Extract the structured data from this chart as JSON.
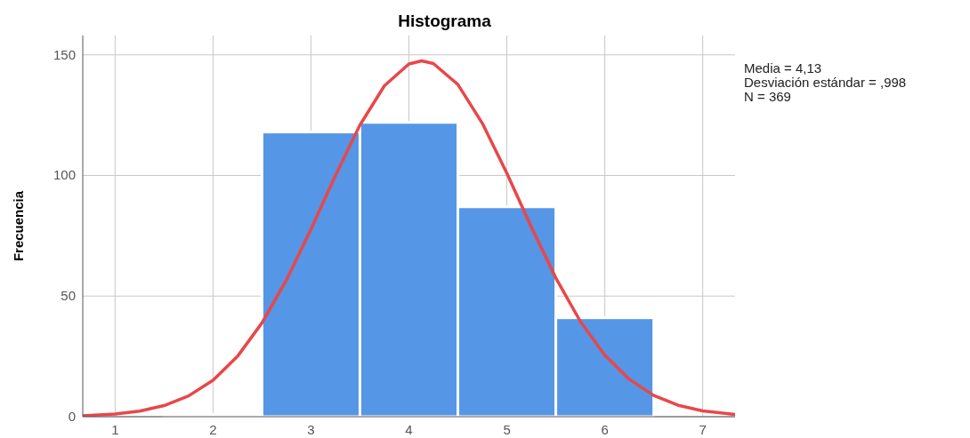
{
  "chart_data": {
    "type": "histogram",
    "title": "Histograma",
    "ylabel": "Frecuencia",
    "bins": [
      1.5,
      2.5,
      3.5,
      4.5,
      5.5,
      6.5
    ],
    "values": [
      1,
      118,
      122,
      87,
      41
    ],
    "color": "#5596e6",
    "series": [
      {
        "type": "line",
        "color": "#e8474a",
        "x": [
          0.67,
          1,
          1.25,
          1.5,
          1.75,
          2,
          2.25,
          2.5,
          2.75,
          3,
          3.25,
          3.5,
          3.75,
          4,
          4.13,
          4.25,
          4.5,
          4.75,
          5,
          5.25,
          5.5,
          5.75,
          6,
          6.25,
          6.5,
          6.75,
          7,
          7.33
        ],
        "values": [
          0.4,
          1.1,
          2.3,
          4.6,
          8.6,
          15.1,
          25,
          38.9,
          56.7,
          77.7,
          100,
          120.9,
          137.2,
          146.2,
          147.5,
          146.4,
          137.7,
          121.6,
          100.9,
          78.6,
          57.5,
          39.5,
          25.5,
          15.5,
          8.8,
          4.7,
          2.4,
          0.9
        ]
      }
    ],
    "xlim": [
      0.67,
      7.33
    ],
    "xticks": [
      1,
      2,
      3,
      4,
      5,
      6,
      7
    ],
    "ylim": [
      0,
      158
    ],
    "yticks": [
      0,
      50,
      100,
      150
    ],
    "grid": true,
    "annotations": [
      "Media = 4,13",
      "Desviación estándar = ,998",
      "N = 369"
    ]
  }
}
